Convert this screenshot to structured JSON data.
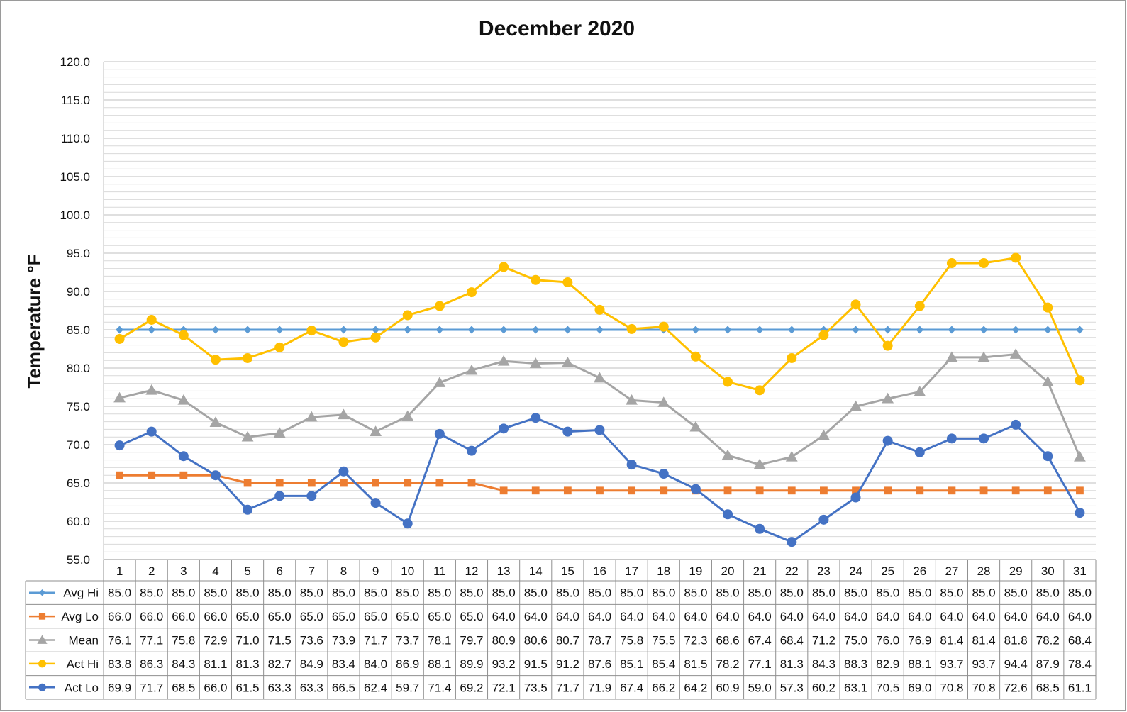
{
  "chart_data": {
    "type": "line",
    "title": "December 2020",
    "ylabel": "Temperature °F",
    "xlabel": "",
    "ylim": [
      55,
      120
    ],
    "y_major_step": 5,
    "y_minor_step": 1,
    "y_tick_decimals": 1,
    "grid": true,
    "legend": "data table below chart",
    "categories": [
      "1",
      "2",
      "3",
      "4",
      "5",
      "6",
      "7",
      "8",
      "9",
      "10",
      "11",
      "12",
      "13",
      "14",
      "15",
      "16",
      "17",
      "18",
      "19",
      "20",
      "21",
      "22",
      "23",
      "24",
      "25",
      "26",
      "27",
      "28",
      "29",
      "30",
      "31"
    ],
    "series": [
      {
        "name": "Avg Hi",
        "color": "#5B9BD5",
        "marker": "diamond",
        "values": [
          85.0,
          85.0,
          85.0,
          85.0,
          85.0,
          85.0,
          85.0,
          85.0,
          85.0,
          85.0,
          85.0,
          85.0,
          85.0,
          85.0,
          85.0,
          85.0,
          85.0,
          85.0,
          85.0,
          85.0,
          85.0,
          85.0,
          85.0,
          85.0,
          85.0,
          85.0,
          85.0,
          85.0,
          85.0,
          85.0,
          85.0
        ]
      },
      {
        "name": "Avg Lo",
        "color": "#ED7D31",
        "marker": "square",
        "values": [
          66.0,
          66.0,
          66.0,
          66.0,
          65.0,
          65.0,
          65.0,
          65.0,
          65.0,
          65.0,
          65.0,
          65.0,
          64.0,
          64.0,
          64.0,
          64.0,
          64.0,
          64.0,
          64.0,
          64.0,
          64.0,
          64.0,
          64.0,
          64.0,
          64.0,
          64.0,
          64.0,
          64.0,
          64.0,
          64.0,
          64.0
        ]
      },
      {
        "name": "Mean",
        "color": "#A5A5A5",
        "marker": "triangle",
        "values": [
          76.1,
          77.1,
          75.8,
          72.9,
          71.0,
          71.5,
          73.6,
          73.9,
          71.7,
          73.7,
          78.1,
          79.7,
          80.9,
          80.6,
          80.7,
          78.7,
          75.8,
          75.5,
          72.3,
          68.6,
          67.4,
          68.4,
          71.2,
          75.0,
          76.0,
          76.9,
          81.4,
          81.4,
          81.8,
          78.2,
          68.4
        ]
      },
      {
        "name": "Act Hi",
        "color": "#FFC000",
        "marker": "circle",
        "values": [
          83.8,
          86.3,
          84.3,
          81.1,
          81.3,
          82.7,
          84.9,
          83.4,
          84.0,
          86.9,
          88.1,
          89.9,
          93.2,
          91.5,
          91.2,
          87.6,
          85.1,
          85.4,
          81.5,
          78.2,
          77.1,
          81.3,
          84.3,
          88.3,
          82.9,
          88.1,
          93.7,
          93.7,
          94.4,
          87.9,
          78.4
        ]
      },
      {
        "name": "Act Lo",
        "color": "#4472C4",
        "marker": "circle",
        "values": [
          69.9,
          71.7,
          68.5,
          66.0,
          61.5,
          63.3,
          63.3,
          66.5,
          62.4,
          59.7,
          71.4,
          69.2,
          72.1,
          73.5,
          71.7,
          71.9,
          67.4,
          66.2,
          64.2,
          60.9,
          59.0,
          57.3,
          60.2,
          63.1,
          70.5,
          69.0,
          70.8,
          70.8,
          72.6,
          68.5,
          61.1
        ]
      }
    ]
  }
}
